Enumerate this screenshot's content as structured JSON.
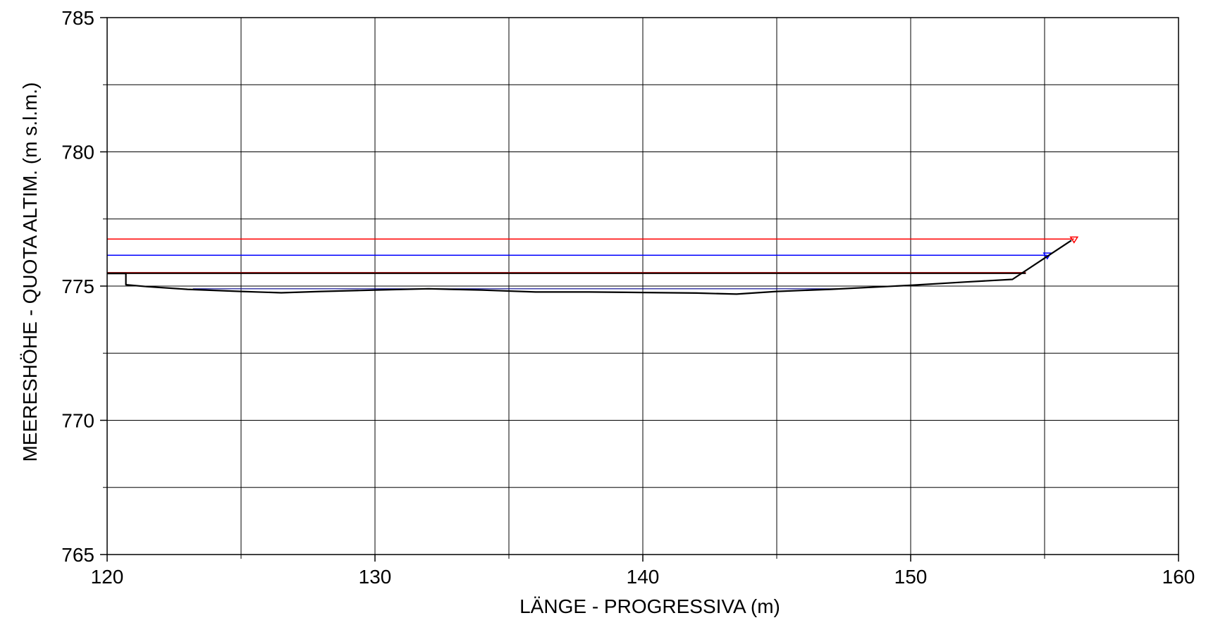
{
  "chart_data": {
    "type": "line",
    "title": "",
    "xlabel": "LÄNGE - PROGRESSIVA  (m)",
    "ylabel": "MEERESHÖHE - QUOTA ALTIM.  (m s.l.m.)",
    "xlim": [
      120,
      160
    ],
    "ylim": [
      765,
      785
    ],
    "x_major_ticks": [
      120,
      130,
      140,
      150,
      160
    ],
    "x_minor_ticks": [
      125,
      135,
      145,
      155
    ],
    "y_major_ticks": [
      765,
      770,
      775,
      780,
      785
    ],
    "y_minor_ticks": [
      767.5,
      772.5,
      777.5,
      782.5
    ],
    "x_tick_labels": [
      "120",
      "130",
      "140",
      "150",
      "160"
    ],
    "y_tick_labels": [
      "765",
      "770",
      "775",
      "780",
      "785"
    ],
    "grid": true,
    "legend": "none",
    "series": [
      {
        "color": "#000000",
        "style": "terrain-profile",
        "x": [
          120,
          120.7,
          120.7,
          121.5,
          123,
          125,
          126.5,
          128,
          130,
          132,
          134,
          136,
          138,
          140,
          142,
          143.5,
          145,
          147,
          149,
          150,
          152,
          153.8,
          156
        ],
        "y": [
          775.47,
          775.47,
          775.05,
          774.98,
          774.88,
          774.8,
          774.75,
          774.8,
          774.85,
          774.9,
          774.85,
          774.78,
          774.78,
          774.76,
          774.74,
          774.7,
          774.8,
          774.88,
          774.98,
          775.03,
          775.15,
          775.25,
          776.7
        ]
      },
      {
        "color": "#000000",
        "style": "bank-line",
        "x": [
          120,
          154.3
        ],
        "y": [
          775.47,
          775.47
        ]
      },
      {
        "color": "#8b0000",
        "style": "water-level-brown",
        "x": [
          120,
          154.3
        ],
        "y": [
          775.5,
          775.5
        ]
      },
      {
        "color": "#ff0000",
        "style": "water-level-red",
        "marker": "triangle",
        "x": [
          120,
          156.1
        ],
        "y": [
          776.75,
          776.75
        ]
      },
      {
        "color": "#0000ff",
        "style": "water-level-blue",
        "marker": "triangle",
        "x": [
          120,
          155.1
        ],
        "y": [
          776.15,
          776.15
        ]
      },
      {
        "color": "#00008b",
        "style": "low-flow",
        "x": [
          123.2,
          147.3
        ],
        "y": [
          774.9,
          774.9
        ]
      }
    ]
  }
}
